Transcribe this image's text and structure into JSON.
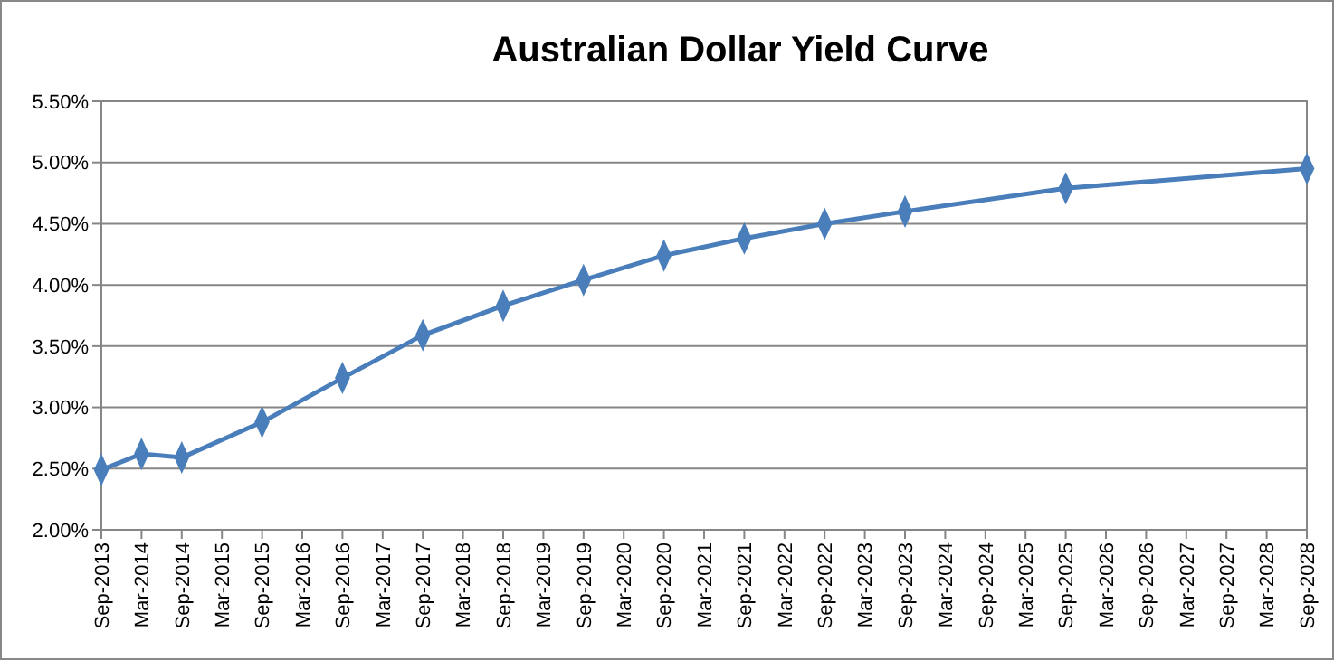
{
  "chart_data": {
    "type": "line",
    "title": "Australian Dollar Yield Curve",
    "categories": [
      "Sep-2013",
      "Mar-2014",
      "Sep-2014",
      "Mar-2015",
      "Sep-2015",
      "Mar-2016",
      "Sep-2016",
      "Mar-2017",
      "Sep-2017",
      "Mar-2018",
      "Sep-2018",
      "Mar-2019",
      "Sep-2019",
      "Mar-2020",
      "Sep-2020",
      "Mar-2021",
      "Sep-2021",
      "Mar-2022",
      "Sep-2022",
      "Mar-2023",
      "Sep-2023",
      "Mar-2024",
      "Sep-2024",
      "Mar-2025",
      "Sep-2025",
      "Mar-2026",
      "Sep-2026",
      "Mar-2027",
      "Sep-2027",
      "Mar-2028",
      "Sep-2028"
    ],
    "series": [
      {
        "color": "#4a7ebb",
        "values": [
          2.49,
          2.62,
          2.59,
          null,
          2.88,
          null,
          3.24,
          null,
          3.59,
          null,
          3.83,
          null,
          4.04,
          null,
          4.24,
          null,
          4.38,
          null,
          4.5,
          null,
          4.6,
          null,
          null,
          null,
          4.79,
          null,
          null,
          null,
          null,
          null,
          4.95
        ]
      }
    ],
    "ylim": [
      2,
      5.5
    ],
    "yticks": [
      {
        "value": 2,
        "label": "2.00%"
      },
      {
        "value": 2.5,
        "label": "2.50%"
      },
      {
        "value": 3,
        "label": "3.00%"
      },
      {
        "value": 3.5,
        "label": "3.50%"
      },
      {
        "value": 4,
        "label": "4.00%"
      },
      {
        "value": 4.5,
        "label": "4.50%"
      },
      {
        "value": 5,
        "label": "5.00%"
      },
      {
        "value": 5.5,
        "label": "5.50%"
      }
    ],
    "grid": "y",
    "marker": "diamond",
    "line_style": "solid"
  }
}
